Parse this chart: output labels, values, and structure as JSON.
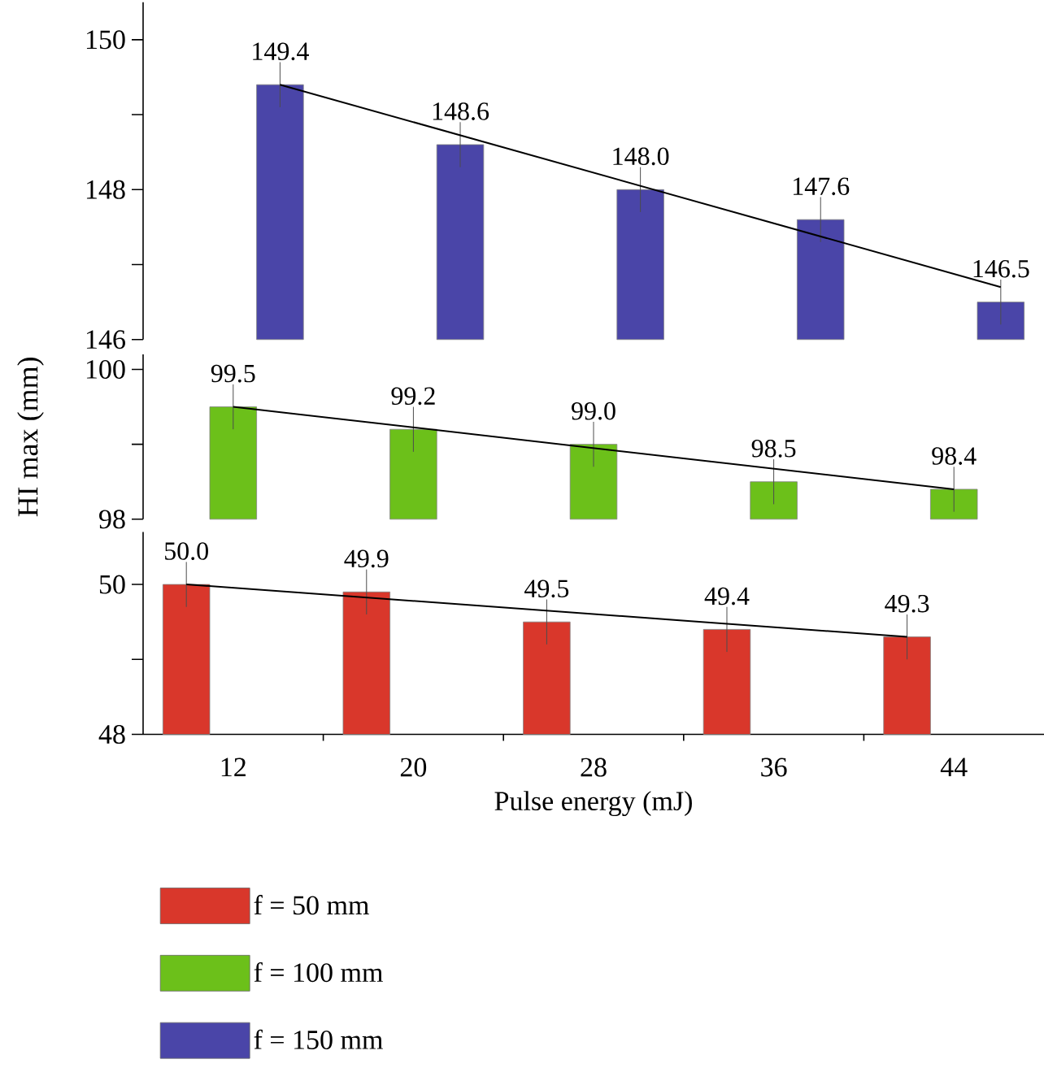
{
  "chart_data": [
    {
      "type": "bar",
      "categories": [
        "12",
        "20",
        "28",
        "36",
        "44"
      ],
      "ylim": [
        146,
        150.5
      ],
      "yticks": [
        146,
        {
          "value": 147,
          "label": null
        },
        148,
        {
          "value": 149,
          "label": null
        },
        150
      ],
      "tick_labels": "y",
      "series": [
        {
          "color": "#d9372b",
          "values": [
            null,
            null,
            null,
            null,
            null
          ]
        },
        {
          "color": "#6cc01a",
          "values": [
            null,
            null,
            null,
            null,
            null
          ]
        },
        {
          "color": "#4a45a8",
          "values": [
            149.4,
            148.6,
            148.0,
            147.6,
            146.5
          ],
          "errors": [
            0.3,
            0.3,
            0.3,
            0.3,
            0.3
          ],
          "value_labels": [
            "149.4",
            "148.6",
            "148.0",
            "147.6",
            "146.5"
          ]
        },
        {
          "type": "line",
          "color": "#000000",
          "x": [
            "12",
            "44"
          ],
          "values": [
            149.4,
            146.7
          ]
        }
      ]
    },
    {
      "type": "bar",
      "categories": [
        "12",
        "20",
        "28",
        "36",
        "44"
      ],
      "ylim": [
        98,
        100.2
      ],
      "yticks": [
        98,
        {
          "value": 99,
          "label": null
        },
        100
      ],
      "tick_labels": "y",
      "ylabel": "HI max (mm)",
      "series": [
        {
          "color": "#d9372b",
          "values": [
            null,
            null,
            null,
            null,
            null
          ]
        },
        {
          "color": "#6cc01a",
          "values": [
            99.5,
            99.2,
            99.0,
            98.5,
            98.4
          ],
          "errors": [
            0.3,
            0.3,
            0.3,
            0.3,
            0.3
          ],
          "value_labels": [
            "99.5",
            "99.2",
            "99.0",
            "98.5",
            "98.4"
          ]
        },
        {
          "color": "#4a45a8",
          "values": [
            null,
            null,
            null,
            null,
            null
          ]
        },
        {
          "type": "line",
          "color": "#000000",
          "x": [
            "12",
            "44"
          ],
          "values": [
            99.5,
            98.4
          ]
        }
      ]
    },
    {
      "type": "bar",
      "categories": [
        "12",
        "20",
        "28",
        "36",
        "44"
      ],
      "ylim": [
        48,
        50.7
      ],
      "yticks": [
        48,
        {
          "value": 49,
          "label": null
        },
        50
      ],
      "xlabel": "Pulse energy (mJ)",
      "legend": "bottom",
      "series": [
        {
          "name": "f = 50 mm",
          "color": "#d9372b",
          "values": [
            50.0,
            49.9,
            49.5,
            49.4,
            49.3
          ],
          "errors": [
            0.3,
            0.3,
            0.3,
            0.3,
            0.3
          ],
          "value_labels": [
            "50.0",
            "49.9",
            "49.5",
            "49.4",
            "49.3"
          ]
        },
        {
          "name": "f = 100 mm",
          "color": "#6cc01a",
          "values": [
            null,
            null,
            null,
            null,
            null
          ]
        },
        {
          "name": "f = 150 mm",
          "color": "#4a45a8",
          "values": [
            null,
            null,
            null,
            null,
            null
          ]
        },
        {
          "type": "line",
          "color": "#000000",
          "x": [
            "12",
            "44"
          ],
          "values": [
            50.0,
            49.3
          ]
        }
      ]
    }
  ]
}
